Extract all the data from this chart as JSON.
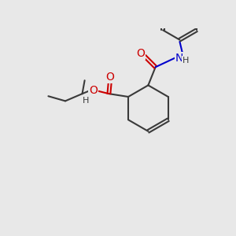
{
  "background_color": "#e8e8e8",
  "figsize": [
    3.0,
    3.0
  ],
  "dpi": 100,
  "bond_color": "#3a3a3a",
  "bond_lw": 1.5,
  "atom_colors": {
    "O": "#cc0000",
    "N": "#0000cc",
    "C": "#3a3a3a",
    "H": "#3a3a3a"
  }
}
